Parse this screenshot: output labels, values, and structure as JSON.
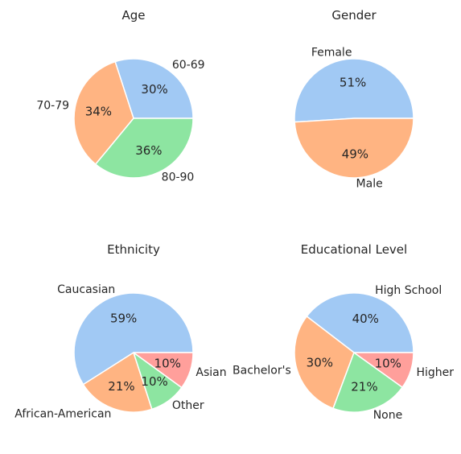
{
  "chart_data": [
    {
      "type": "pie",
      "title": "Age",
      "startangle": 0,
      "slices": [
        {
          "label": "60-69",
          "value": 30,
          "pct_label": "30%",
          "color": "#a1c9f4"
        },
        {
          "label": "70-79",
          "value": 34,
          "pct_label": "34%",
          "color": "#ffb482"
        },
        {
          "label": "80-90",
          "value": 36,
          "pct_label": "36%",
          "color": "#8de5a1"
        }
      ]
    },
    {
      "type": "pie",
      "title": "Gender",
      "startangle": 0,
      "slices": [
        {
          "label": "Female",
          "value": 51,
          "pct_label": "51%",
          "color": "#a1c9f4"
        },
        {
          "label": "Male",
          "value": 49,
          "pct_label": "49%",
          "color": "#ffb482"
        }
      ]
    },
    {
      "type": "pie",
      "title": "Ethnicity",
      "startangle": 0,
      "slices": [
        {
          "label": "Caucasian",
          "value": 59,
          "pct_label": "59%",
          "color": "#a1c9f4"
        },
        {
          "label": "African-American",
          "value": 21,
          "pct_label": "21%",
          "color": "#ffb482"
        },
        {
          "label": "Other",
          "value": 10,
          "pct_label": "10%",
          "color": "#8de5a1"
        },
        {
          "label": "Asian",
          "value": 10,
          "pct_label": "10%",
          "color": "#ff9f9b"
        }
      ]
    },
    {
      "type": "pie",
      "title": "Educational Level",
      "startangle": 0,
      "slices": [
        {
          "label": "High School",
          "value": 40,
          "pct_label": "40%",
          "color": "#a1c9f4"
        },
        {
          "label": "Bachelor's",
          "value": 30,
          "pct_label": "30%",
          "color": "#ffb482"
        },
        {
          "label": "None",
          "value": 21,
          "pct_label": "21%",
          "color": "#8de5a1"
        },
        {
          "label": "Higher",
          "value": 10,
          "pct_label": "10%",
          "color": "#ff9f9b"
        }
      ]
    }
  ]
}
